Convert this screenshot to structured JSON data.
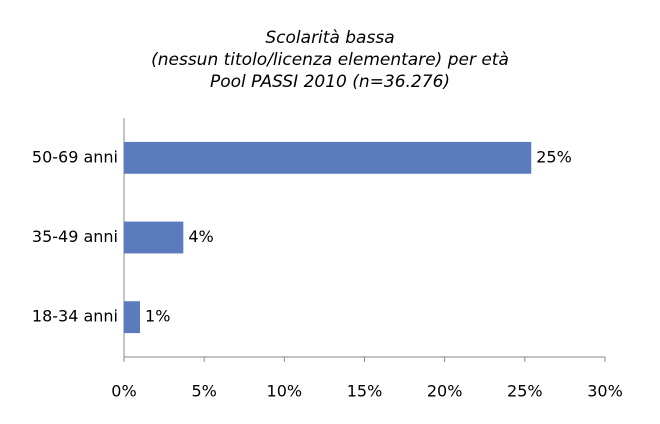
{
  "chart_data": {
    "type": "bar",
    "orientation": "horizontal",
    "title": [
      "Scolarità bassa",
      "(nessun titolo/licenza elementare) per età",
      "Pool PASSI 2010 (n=36.276)"
    ],
    "categories": [
      "50-69 anni",
      "35-49 anni",
      "18-34 anni"
    ],
    "values": [
      25.4,
      3.7,
      1.0
    ],
    "value_labels": [
      "25%",
      "4%",
      "1%"
    ],
    "color": "#5b7bbd",
    "xlim": [
      0,
      30
    ],
    "xticks": [
      {
        "value": 0,
        "label": "0%"
      },
      {
        "value": 5,
        "label": "5%"
      },
      {
        "value": 10,
        "label": "10%"
      },
      {
        "value": 15,
        "label": "15%"
      },
      {
        "value": 20,
        "label": "20%"
      },
      {
        "value": 25,
        "label": "25%"
      },
      {
        "value": 30,
        "label": "30%"
      }
    ],
    "grid": false
  }
}
